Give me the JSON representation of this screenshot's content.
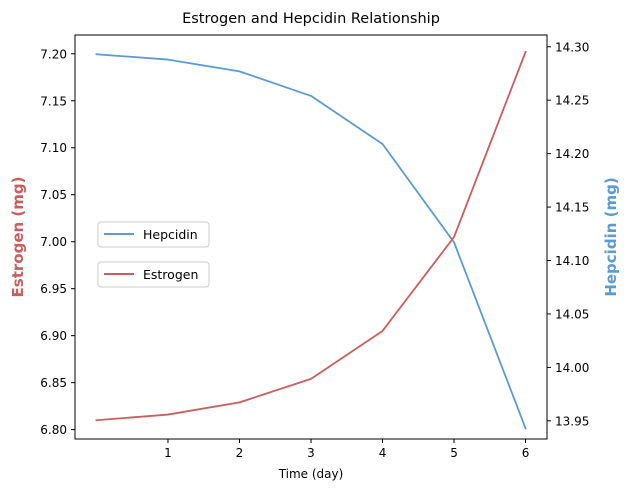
{
  "chart_data": {
    "type": "line",
    "title": "Estrogen and Hepcidin Relationship",
    "xlabel": "Time (day)",
    "x": [
      0,
      1,
      2,
      3,
      4,
      5,
      6
    ],
    "x_ticks": [
      1,
      2,
      3,
      4,
      5,
      6
    ],
    "x_tick_labels": [
      "1",
      "2",
      "3",
      "4",
      "5",
      "6"
    ],
    "xlim": [
      -0.3,
      6.3
    ],
    "left_axis": {
      "label": "Estrogen (mg)",
      "color": "#cd5c5c",
      "ylim": [
        6.79,
        7.22
      ],
      "ticks": [
        6.8,
        6.85,
        6.9,
        6.95,
        7.0,
        7.05,
        7.1,
        7.15,
        7.2
      ],
      "tick_labels": [
        "6.80",
        "6.85",
        "6.90",
        "6.95",
        "7.00",
        "7.05",
        "7.10",
        "7.15",
        "7.20"
      ]
    },
    "right_axis": {
      "label": "Hepcidin (mg)",
      "color": "#5b9bd5",
      "ylim": [
        13.933,
        14.311
      ],
      "ticks": [
        13.95,
        14.0,
        14.05,
        14.1,
        14.15,
        14.2,
        14.25,
        14.3
      ],
      "tick_labels": [
        "13.95",
        "14.00",
        "14.05",
        "14.10",
        "14.15",
        "14.20",
        "14.25",
        "14.30"
      ]
    },
    "series": [
      {
        "name": "Hepcidin",
        "axis": "right",
        "color": "#5b9bd5",
        "values": [
          14.293,
          14.288,
          14.277,
          14.254,
          14.209,
          14.117,
          13.943
        ]
      },
      {
        "name": "Estrogen",
        "axis": "left",
        "color": "#cd5c5c",
        "values": [
          6.81,
          6.816,
          6.829,
          6.854,
          6.905,
          7.005,
          7.202
        ]
      }
    ],
    "legend_position": "center-left",
    "grid": false
  }
}
